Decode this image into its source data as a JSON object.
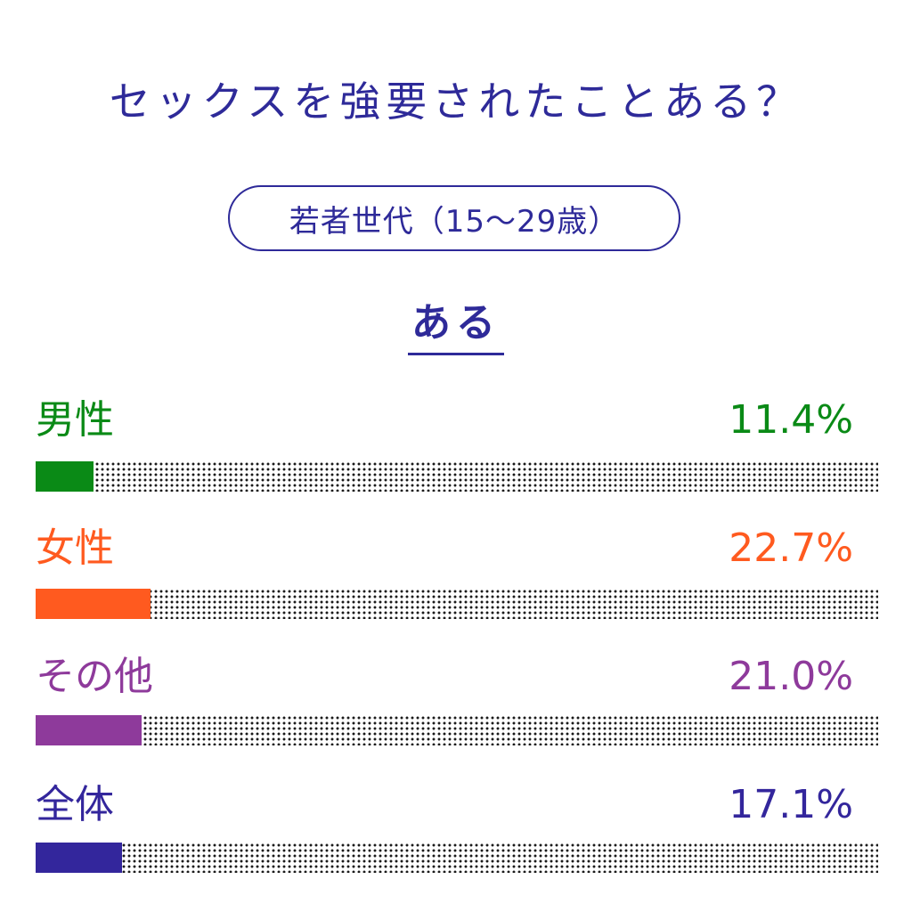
{
  "title": "セックスを強要されたことある？",
  "subtitle": "若者世代（15〜29歳）",
  "answer_label": "ある",
  "colors": {
    "title": "#2e2a99",
    "male": "#0a8a16",
    "female": "#ff5a1f",
    "other": "#8e3a9b",
    "all": "#33269c",
    "dots": "#1a1a1a"
  },
  "chart_data": {
    "type": "bar",
    "title": "セックスを強要されたことある？",
    "subtitle": "若者世代（15〜29歳）",
    "series_label": "ある",
    "categories": [
      "男性",
      "女性",
      "その他",
      "全体"
    ],
    "values": [
      11.4,
      22.7,
      21.0,
      17.1
    ],
    "value_labels": [
      "11.4%",
      "22.7%",
      "21.0%",
      "17.1%"
    ],
    "unit": "%",
    "ylim": [
      0,
      100
    ],
    "orientation": "horizontal",
    "grid": false,
    "legend": "none"
  }
}
